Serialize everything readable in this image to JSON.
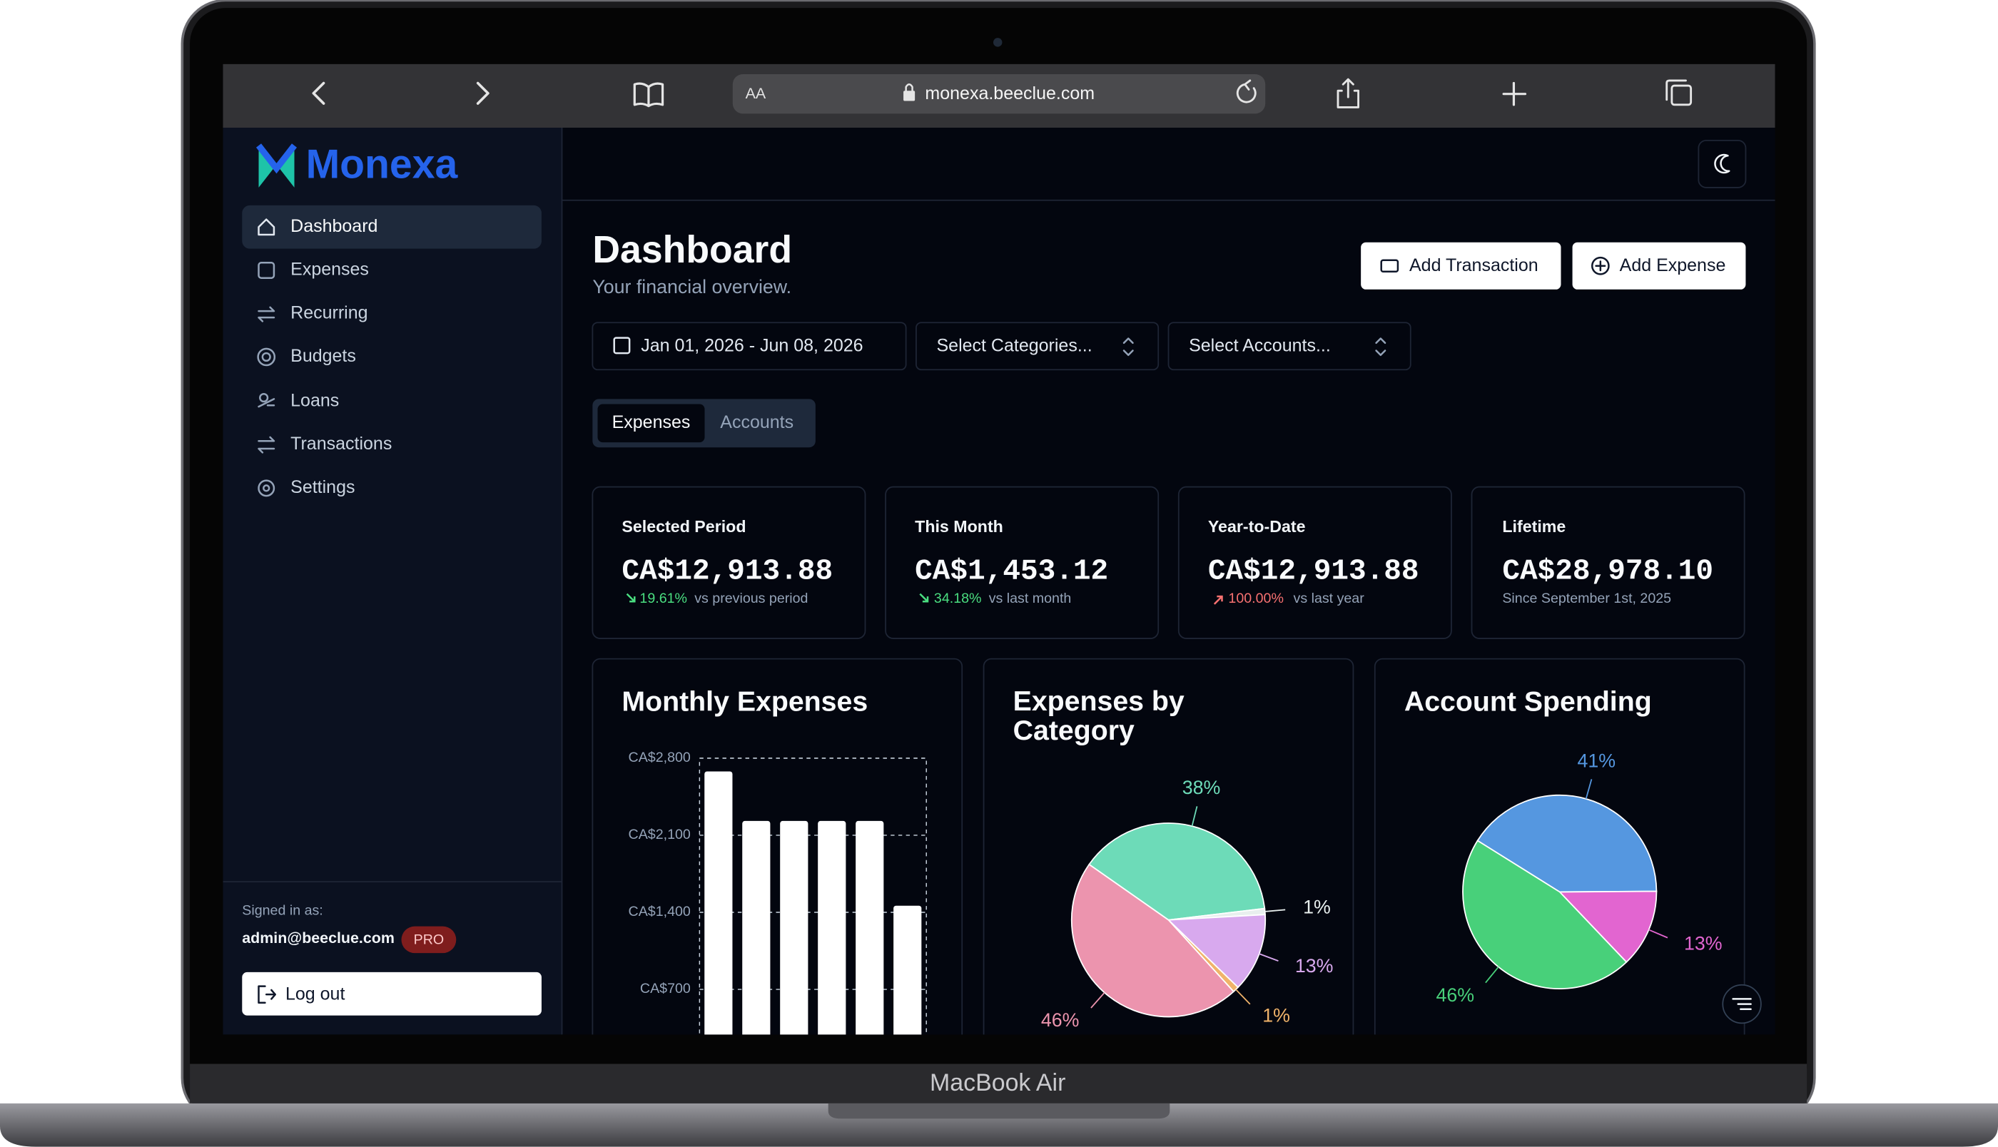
{
  "device": {
    "label": "MacBook Air"
  },
  "browser": {
    "text_size": "AA",
    "url": "monexa.beeclue.com"
  },
  "sidebar": {
    "brand": "Monexa",
    "nav": [
      "Dashboard",
      "Expenses",
      "Recurring",
      "Budgets",
      "Loans",
      "Transactions",
      "Settings"
    ],
    "signed_in_label": "Signed in as:",
    "email": "admin@beeclue.com",
    "plan": "PRO",
    "logout": "Log out"
  },
  "header": {
    "title": "Dashboard",
    "subtitle": "Your financial overview."
  },
  "actions": [
    "Add Transaction",
    "Add Expense"
  ],
  "filters": [
    "Jan 01, 2026 - Jun 08, 2026",
    "Select Categories...",
    "Select Accounts..."
  ],
  "tabs": [
    "Expenses",
    "Accounts"
  ],
  "stats": [
    {
      "title": "Selected Period",
      "value": "CA$12,913.88",
      "change": "19.61%",
      "note": "vs previous period"
    },
    {
      "title": "This Month",
      "value": "CA$1,453.12",
      "change": "34.18%",
      "note": "vs last month"
    },
    {
      "title": "Year-to-Date",
      "value": "CA$12,913.88",
      "change": "100.00%",
      "note": "vs last year"
    },
    {
      "title": "Lifetime",
      "value": "CA$28,978.10",
      "note": "Since September 1st, 2025"
    }
  ],
  "chart_data": [
    {
      "type": "bar",
      "title": "Monthly Expenses",
      "color": "#ffffff",
      "grid": true,
      "values": [
        2680,
        2230,
        2230,
        2230,
        2230,
        1460
      ],
      "ylim": [
        0,
        2800
      ],
      "yticks": [
        {
          "value": 2800,
          "label": "CA$2,800"
        },
        {
          "value": 2100,
          "label": "CA$2,100"
        },
        {
          "value": 1400,
          "label": "CA$1,400"
        },
        {
          "value": 700,
          "label": "CA$700"
        }
      ]
    },
    {
      "type": "pie",
      "title": "Expenses by Category",
      "start_angle": 305,
      "values": [
        38,
        1,
        13,
        1,
        46
      ],
      "value_labels": [
        "38%",
        "1%",
        "13%",
        "1%",
        "46%"
      ],
      "colors": [
        "#6ddbb8",
        "#e8efee",
        "#d8a9ee",
        "#f0b36a",
        "#ec94ae"
      ]
    },
    {
      "type": "pie",
      "title": "Account Spending",
      "start_angle": 302,
      "values": [
        41,
        13,
        46
      ],
      "value_labels": [
        "41%",
        "13%",
        "46%"
      ],
      "colors": [
        "#5597e0",
        "#e265d0",
        "#48d07a"
      ]
    }
  ]
}
